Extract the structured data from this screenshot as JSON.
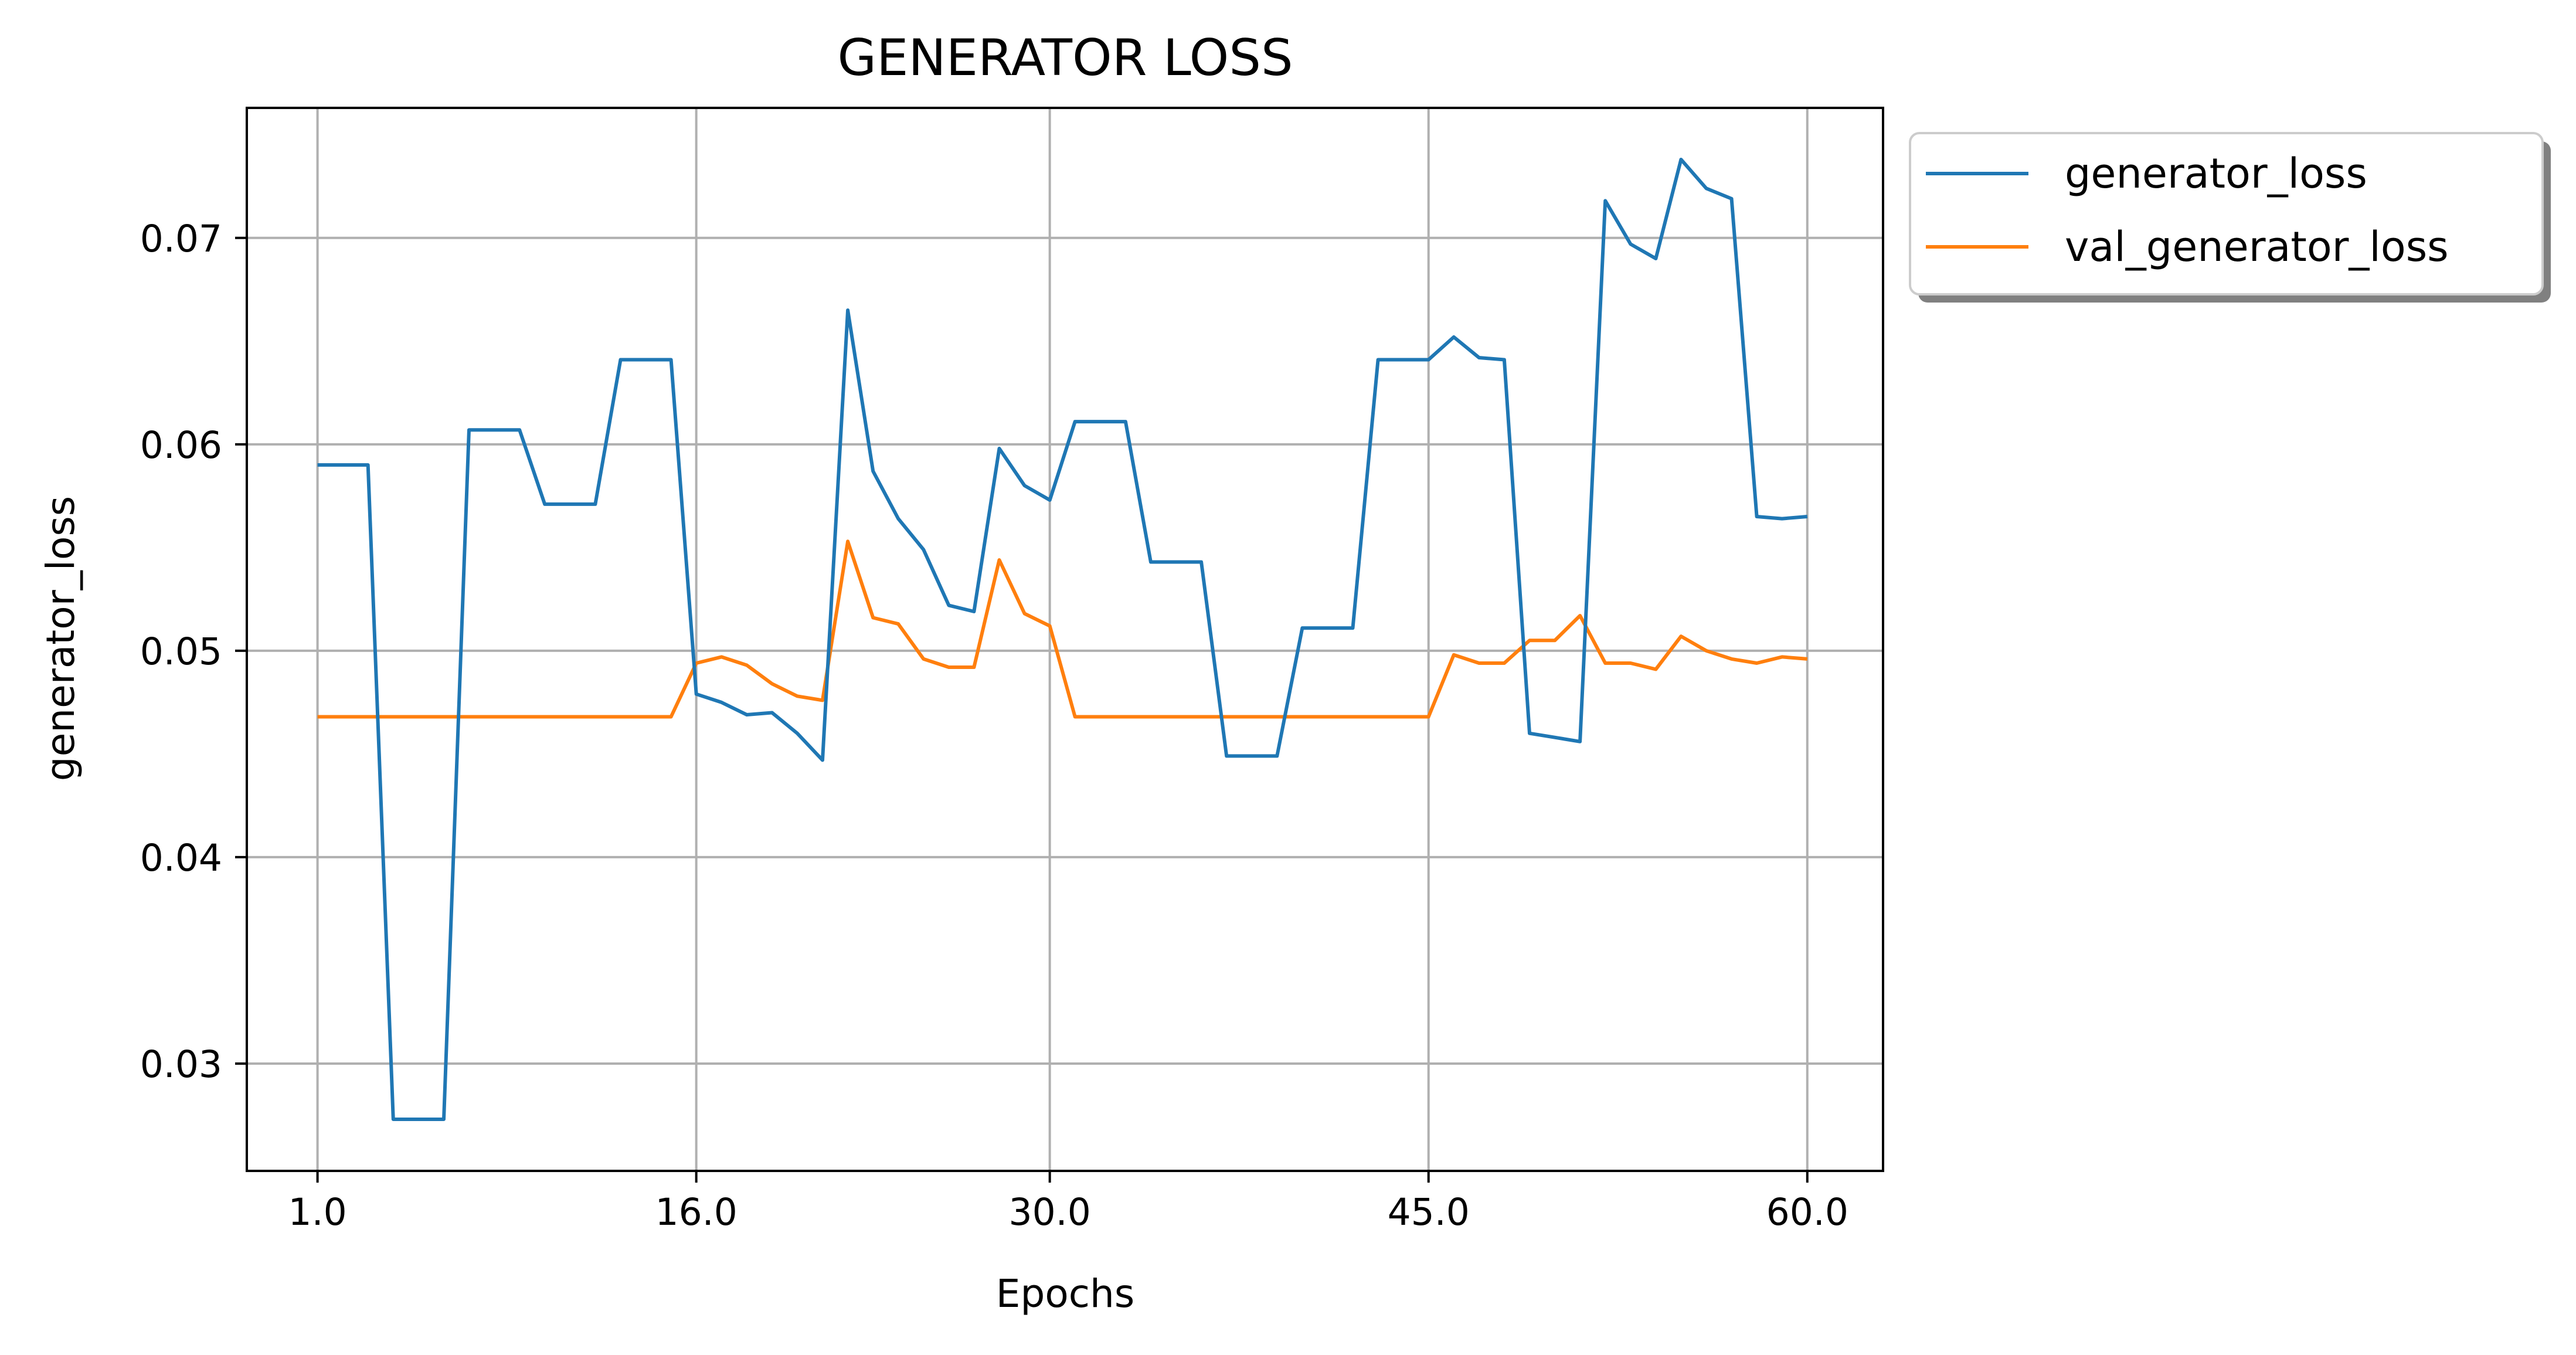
{
  "chart_data": {
    "type": "line",
    "title": "GENERATOR LOSS",
    "xlabel": "Epochs",
    "ylabel": "generator_loss",
    "xlim": [
      -1.8,
      63.0
    ],
    "ylim": [
      0.0248,
      0.0763
    ],
    "xticks": [
      1,
      16,
      30,
      45,
      60
    ],
    "xtick_labels": [
      "1.0",
      "16.0",
      "30.0",
      "45.0",
      "60.0"
    ],
    "yticks": [
      0.03,
      0.04,
      0.05,
      0.06,
      0.07
    ],
    "ytick_labels": [
      "0.03",
      "0.04",
      "0.05",
      "0.06",
      "0.07"
    ],
    "grid": true,
    "legend_position": "upper right, outside plot area",
    "x": [
      1,
      2,
      3,
      4,
      5,
      6,
      7,
      8,
      9,
      10,
      11,
      12,
      13,
      14,
      15,
      16,
      17,
      18,
      19,
      20,
      21,
      22,
      23,
      24,
      25,
      26,
      27,
      28,
      29,
      30,
      31,
      32,
      33,
      34,
      35,
      36,
      37,
      38,
      39,
      40,
      41,
      42,
      43,
      44,
      45,
      46,
      47,
      48,
      49,
      50,
      51,
      52,
      53,
      54,
      55,
      56,
      57,
      58,
      59,
      60
    ],
    "series": [
      {
        "name": "generator_loss",
        "color": "#1f77b4",
        "values": [
          0.059,
          0.059,
          0.059,
          0.0273,
          0.0273,
          0.0273,
          0.0607,
          0.0607,
          0.0607,
          0.0571,
          0.0571,
          0.0571,
          0.0641,
          0.0641,
          0.0641,
          0.0479,
          0.0475,
          0.0469,
          0.047,
          0.046,
          0.0447,
          0.0665,
          0.0587,
          0.0564,
          0.0549,
          0.0522,
          0.0519,
          0.0598,
          0.058,
          0.0573,
          0.0611,
          0.0611,
          0.0611,
          0.0543,
          0.0543,
          0.0543,
          0.0449,
          0.0449,
          0.0449,
          0.0511,
          0.0511,
          0.0511,
          0.0641,
          0.0641,
          0.0641,
          0.0652,
          0.0642,
          0.0641,
          0.046,
          0.0458,
          0.0456,
          0.0718,
          0.0697,
          0.069,
          0.0738,
          0.0724,
          0.0719,
          0.0565,
          0.0564,
          0.0565
        ]
      },
      {
        "name": "val_generator_loss",
        "color": "#ff7f0e",
        "values": [
          0.0468,
          0.0468,
          0.0468,
          0.0468,
          0.0468,
          0.0468,
          0.0468,
          0.0468,
          0.0468,
          0.0468,
          0.0468,
          0.0468,
          0.0468,
          0.0468,
          0.0468,
          0.0494,
          0.0497,
          0.0493,
          0.0484,
          0.0478,
          0.0476,
          0.0553,
          0.0516,
          0.0513,
          0.0496,
          0.0492,
          0.0492,
          0.0544,
          0.0518,
          0.0512,
          0.0468,
          0.0468,
          0.0468,
          0.0468,
          0.0468,
          0.0468,
          0.0468,
          0.0468,
          0.0468,
          0.0468,
          0.0468,
          0.0468,
          0.0468,
          0.0468,
          0.0468,
          0.0498,
          0.0494,
          0.0494,
          0.0505,
          0.0505,
          0.0517,
          0.0494,
          0.0494,
          0.0491,
          0.0507,
          0.05,
          0.0496,
          0.0494,
          0.0497,
          0.0496
        ]
      }
    ]
  }
}
